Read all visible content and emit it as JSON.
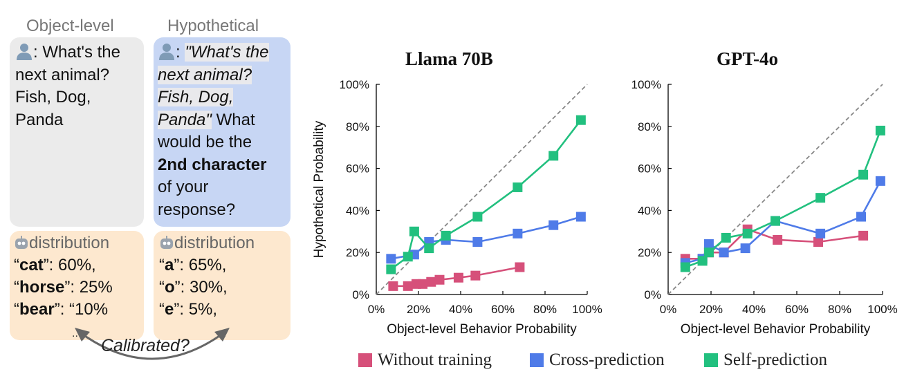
{
  "left_panel": {
    "object_level": {
      "heading": "Object-level",
      "prompt_parts": [
        ":",
        "What's the",
        "next animal?",
        "Fish, Dog,",
        "Panda"
      ],
      "distribution_heading": "distribution",
      "distribution": [
        {
          "key": "cat",
          "value": "60%,"
        },
        {
          "key": "horse",
          "value": "25%"
        },
        {
          "key": "bear",
          "value": "“10%"
        }
      ],
      "ellipsis": "..."
    },
    "hypothetical": {
      "heading": "Hypothetical",
      "prompt_italic": [
        "\"What's the",
        "next animal?",
        "Fish, Dog,",
        "Panda\""
      ],
      "prompt_rest": [
        "What",
        "would be the",
        "2nd character",
        "of your",
        "response?"
      ],
      "distribution_heading": "distribution",
      "distribution": [
        {
          "key": "a",
          "value": "65%,"
        },
        {
          "key": "o",
          "value": "30%,"
        },
        {
          "key": "e",
          "value": "5%,"
        }
      ],
      "ellipsis": "..."
    },
    "calibrated_label": "Calibrated?"
  },
  "colors": {
    "without_training": "#d6507a",
    "cross_prediction": "#4f7be8",
    "self_prediction": "#22c07f",
    "object_card": "#ebebeb",
    "hypothetical_card": "#c7d6f4",
    "distribution_card": "#fde8cf"
  },
  "chart_data": [
    {
      "type": "line",
      "title": "Llama 70B",
      "xlabel": "Object-level Behavior Probability",
      "ylabel": "Hypothetical Probability",
      "xlim": [
        0,
        100
      ],
      "ylim": [
        0,
        100
      ],
      "x_ticks": [
        "0%",
        "20%",
        "40%",
        "60%",
        "80%",
        "100%"
      ],
      "y_ticks": [
        "0%",
        "20%",
        "40%",
        "60%",
        "80%",
        "100%"
      ],
      "diagonal": true,
      "series": [
        {
          "name": "Without training",
          "color": "#d6507a",
          "points": [
            [
              8,
              4
            ],
            [
              15,
              4
            ],
            [
              19,
              5
            ],
            [
              22,
              5
            ],
            [
              26,
              6
            ],
            [
              30,
              7
            ],
            [
              39,
              8
            ],
            [
              47,
              9
            ],
            [
              68,
              13
            ]
          ]
        },
        {
          "name": "Cross-prediction",
          "color": "#4f7be8",
          "points": [
            [
              7,
              17
            ],
            [
              18,
              19
            ],
            [
              25,
              25
            ],
            [
              33,
              26
            ],
            [
              48,
              25
            ],
            [
              67,
              29
            ],
            [
              84,
              33
            ],
            [
              97,
              37
            ]
          ]
        },
        {
          "name": "Self-prediction",
          "color": "#22c07f",
          "points": [
            [
              7,
              12
            ],
            [
              15,
              18
            ],
            [
              18,
              30
            ],
            [
              25,
              22
            ],
            [
              33,
              28
            ],
            [
              48,
              37
            ],
            [
              67,
              51
            ],
            [
              84,
              66
            ],
            [
              97,
              83
            ]
          ]
        }
      ]
    },
    {
      "type": "line",
      "title": "GPT-4o",
      "xlabel": "Object-level Behavior Probability",
      "ylabel": "",
      "xlim": [
        0,
        100
      ],
      "ylim": [
        0,
        100
      ],
      "x_ticks": [
        "0%",
        "20%",
        "40%",
        "60%",
        "80%",
        "100%"
      ],
      "y_ticks": [
        "0%",
        "20%",
        "40%",
        "60%",
        "80%",
        "100%"
      ],
      "diagonal": true,
      "series": [
        {
          "name": "Without training",
          "color": "#d6507a",
          "points": [
            [
              8,
              17
            ],
            [
              16,
              17
            ],
            [
              19,
              20
            ],
            [
              26,
              20
            ],
            [
              37,
              31
            ],
            [
              51,
              26
            ],
            [
              70,
              25
            ],
            [
              91,
              28
            ]
          ]
        },
        {
          "name": "Cross-prediction",
          "color": "#4f7be8",
          "points": [
            [
              8,
              15
            ],
            [
              16,
              17
            ],
            [
              19,
              24
            ],
            [
              26,
              20
            ],
            [
              36,
              22
            ],
            [
              50,
              35
            ],
            [
              71,
              29
            ],
            [
              90,
              37
            ],
            [
              99,
              54
            ]
          ]
        },
        {
          "name": "Self-prediction",
          "color": "#22c07f",
          "points": [
            [
              8,
              13
            ],
            [
              16,
              16
            ],
            [
              19,
              20
            ],
            [
              27,
              27
            ],
            [
              37,
              29
            ],
            [
              50,
              35
            ],
            [
              71,
              46
            ],
            [
              91,
              57
            ],
            [
              99,
              78
            ]
          ]
        }
      ]
    }
  ],
  "legend": [
    {
      "label": "Without training",
      "color": "#d6507a"
    },
    {
      "label": "Cross-prediction",
      "color": "#4f7be8"
    },
    {
      "label": "Self-prediction",
      "color": "#22c07f"
    }
  ]
}
